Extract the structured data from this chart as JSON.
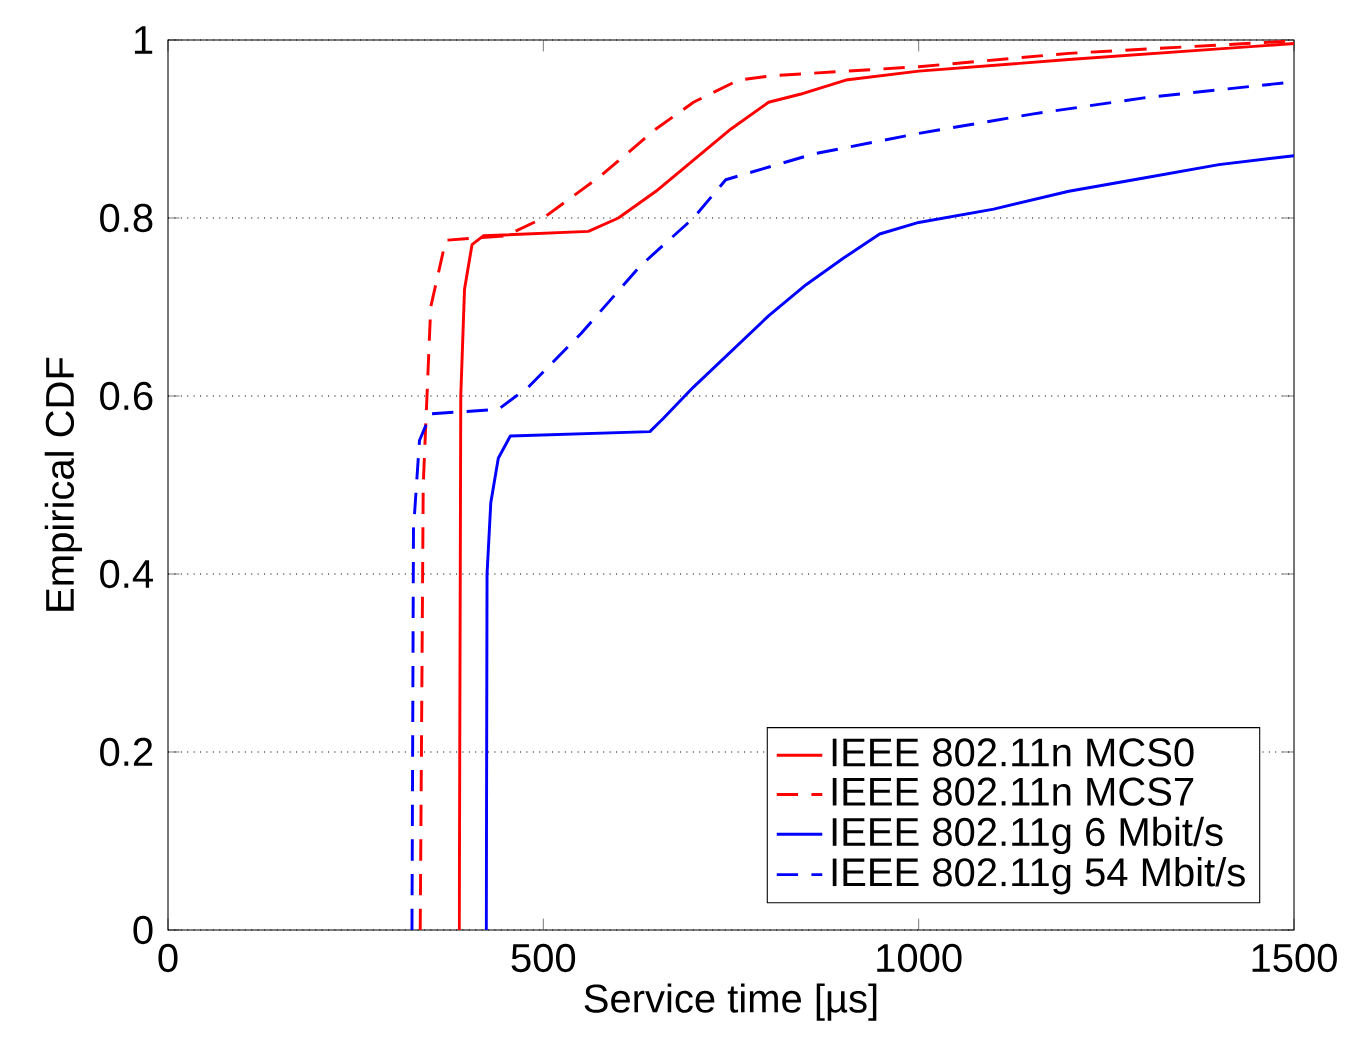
{
  "chart_data": {
    "type": "line",
    "xlabel": "Service time [µs]",
    "ylabel": "Empirical CDF",
    "xlim": [
      0,
      1500
    ],
    "ylim": [
      0,
      1
    ],
    "xticks": [
      0,
      500,
      1000,
      1500
    ],
    "yticks": [
      0,
      0.2,
      0.4,
      0.6,
      0.8,
      1
    ],
    "grid": "y",
    "legend": "bottom right",
    "marker": "none",
    "series": [
      {
        "name": "IEEE 802.11n MCS0",
        "color": "#ff0000",
        "line_style": "solid",
        "x": [
          388,
          390,
          395,
          405,
          420,
          560,
          600,
          650,
          700,
          750,
          800,
          842,
          903,
          1000,
          1200,
          1400,
          1500
        ],
        "values": [
          0,
          0.6,
          0.72,
          0.77,
          0.78,
          0.785,
          0.8,
          0.83,
          0.865,
          0.9,
          0.93,
          0.939,
          0.955,
          0.965,
          0.978,
          0.99,
          0.996
        ]
      },
      {
        "name": "IEEE 802.11n MCS7",
        "color": "#ff0000",
        "line_style": "dashed",
        "x": [
          336,
          340,
          350,
          370,
          450,
          500,
          576,
          650,
          700,
          760,
          807,
          1000,
          1200,
          1500
        ],
        "values": [
          0,
          0.5,
          0.7,
          0.775,
          0.78,
          0.8,
          0.847,
          0.9,
          0.93,
          0.955,
          0.96,
          0.97,
          0.985,
          0.999
        ]
      },
      {
        "name": "IEEE 802.11g 6 Mbit/s",
        "color": "#0000ff",
        "line_style": "solid",
        "x": [
          424,
          425,
          430,
          440,
          456,
          642,
          660,
          700,
          750,
          800,
          850,
          900,
          948,
          1000,
          1100,
          1200,
          1300,
          1400,
          1500
        ],
        "values": [
          0,
          0.4,
          0.48,
          0.53,
          0.555,
          0.56,
          0.575,
          0.61,
          0.65,
          0.69,
          0.725,
          0.755,
          0.782,
          0.795,
          0.81,
          0.83,
          0.845,
          0.86,
          0.87
        ]
      },
      {
        "name": "IEEE 802.11g 54 Mbit/s",
        "color": "#0000ff",
        "line_style": "dashed",
        "x": [
          325,
          327,
          335,
          350,
          440,
          480,
          550,
          629,
          700,
          743,
          860,
          1000,
          1153,
          1300,
          1500
        ],
        "values": [
          0,
          0.45,
          0.55,
          0.58,
          0.585,
          0.61,
          0.67,
          0.746,
          0.8,
          0.843,
          0.872,
          0.895,
          0.917,
          0.935,
          0.953
        ]
      }
    ]
  }
}
